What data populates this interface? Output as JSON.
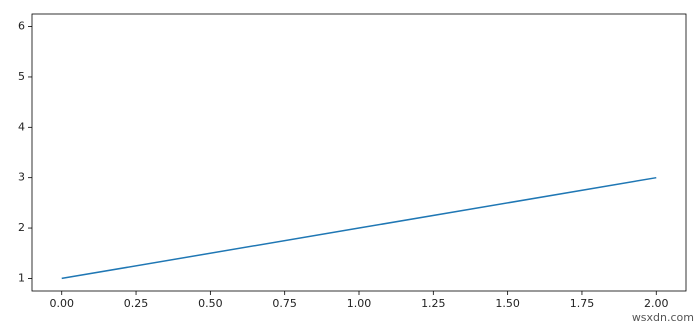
{
  "chart_data": {
    "type": "line",
    "x": [
      0,
      1,
      2
    ],
    "values": [
      1,
      2,
      3
    ],
    "color": "#1f77b4",
    "xlim": [
      -0.1,
      2.1
    ],
    "ylim": [
      0.75,
      6.25
    ],
    "xticks": [
      {
        "value": 0,
        "label": "0.00"
      },
      {
        "value": 0.25,
        "label": "0.25"
      },
      {
        "value": 0.5,
        "label": "0.50"
      },
      {
        "value": 0.75,
        "label": "0.75"
      },
      {
        "value": 1,
        "label": "1.00"
      },
      {
        "value": 1.25,
        "label": "1.25"
      },
      {
        "value": 1.5,
        "label": "1.50"
      },
      {
        "value": 1.75,
        "label": "1.75"
      },
      {
        "value": 2,
        "label": "2.00"
      }
    ],
    "yticks": [
      1,
      2,
      3,
      4,
      5,
      6
    ],
    "grid": false
  },
  "watermark": "wsxdn.com"
}
